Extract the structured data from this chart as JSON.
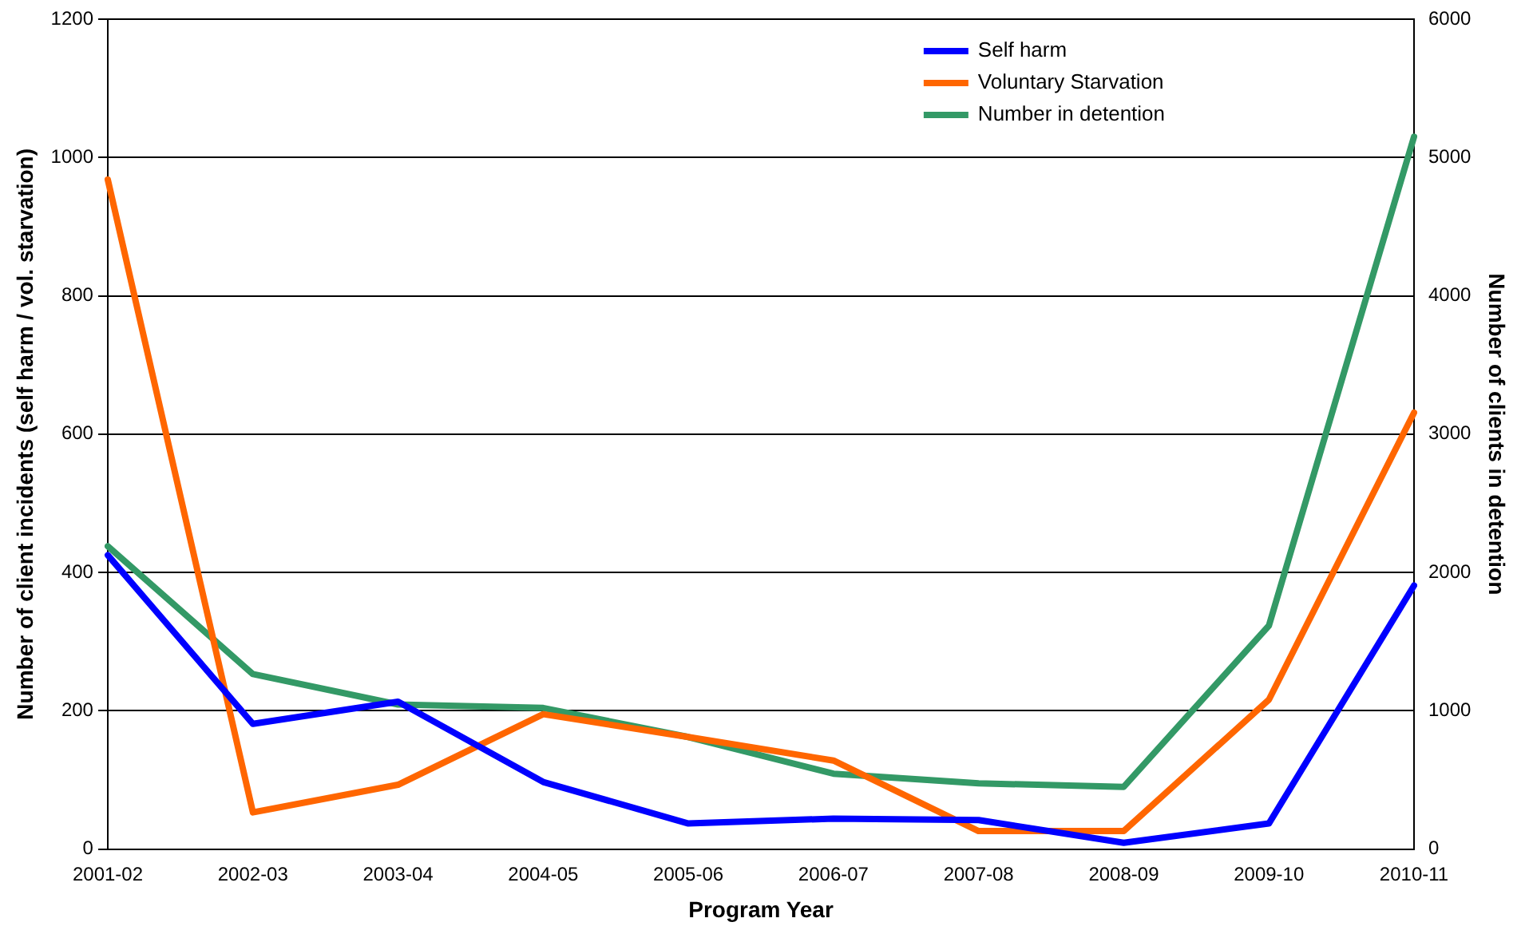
{
  "chart_data": {
    "type": "line",
    "xlabel": "Program Year",
    "ylabel": "Number of client incidents (self harm / vol. starvation)",
    "y2label": "Number of clients in detention",
    "categories": [
      "2001-02",
      "2002-03",
      "2003-04",
      "2004-05",
      "2005-06",
      "2006-07",
      "2007-08",
      "2008-09",
      "2009-10",
      "2010-11"
    ],
    "series": [
      {
        "name": "Self harm",
        "color": "#0000ff",
        "values": [
          425,
          181,
          213,
          97,
          37,
          44,
          42,
          9,
          37,
          381
        ]
      },
      {
        "name": "Voluntary Starvation",
        "color": "#ff6600",
        "values": [
          968,
          53,
          93,
          195,
          162,
          128,
          26,
          26,
          216,
          631
        ]
      },
      {
        "name": "Number in detention",
        "color": "#339966",
        "axis": "y2",
        "values": [
          2190,
          1265,
          1045,
          1020,
          810,
          545,
          475,
          450,
          1615,
          5150
        ]
      }
    ],
    "ylim": [
      0,
      1200
    ],
    "yticks": [
      0,
      200,
      400,
      600,
      800,
      1000,
      1200
    ],
    "y2lim": [
      0,
      6000
    ],
    "y2ticks": [
      0,
      1000,
      2000,
      3000,
      4000,
      5000,
      6000
    ],
    "grid": "y",
    "legend": "top right",
    "marker": "none",
    "line_style": "solid"
  }
}
